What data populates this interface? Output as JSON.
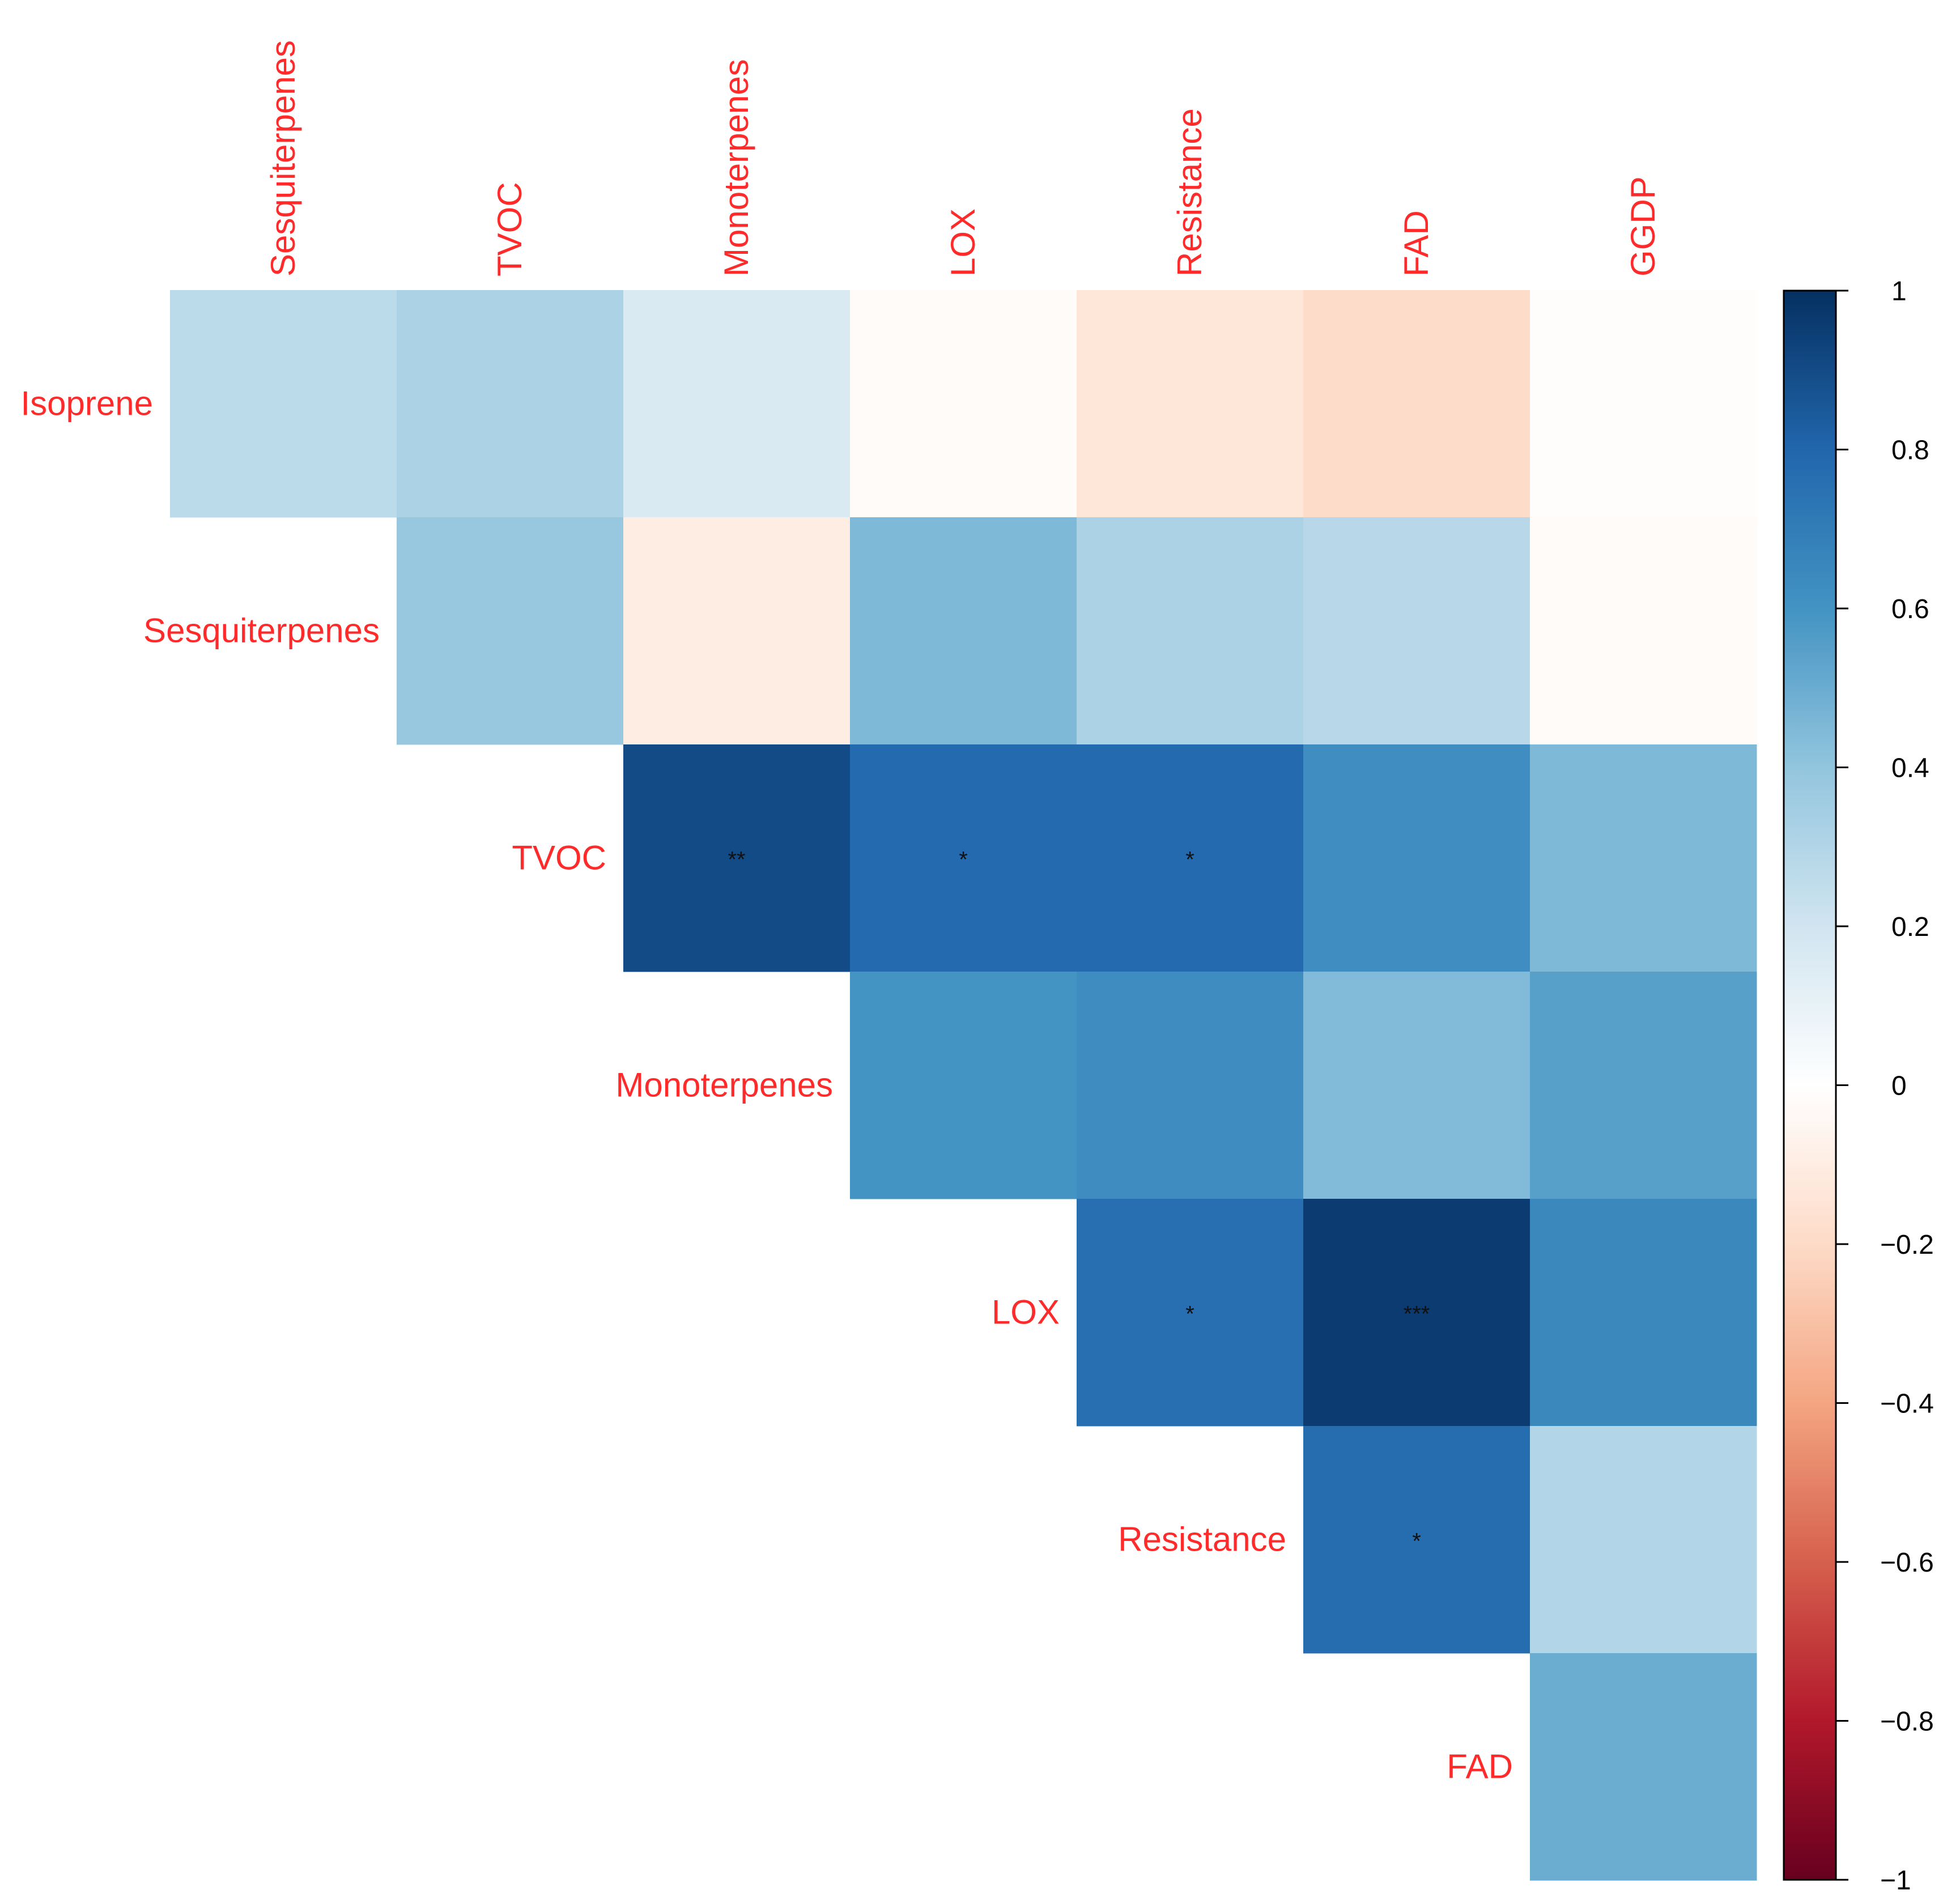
{
  "chart_data": {
    "type": "heatmap",
    "title": "",
    "row_labels": [
      "Isoprene",
      "Sesquiterpenes",
      "TVOC",
      "Monoterpenes",
      "LOX",
      "Resistance",
      "FAD"
    ],
    "col_labels": [
      "Sesquiterpenes",
      "TVOC",
      "Monoterpenes",
      "LOX",
      "Resistance",
      "FAD",
      "GGDP"
    ],
    "layout": "upper-triangle",
    "cells": [
      {
        "row": "Isoprene",
        "col": "Sesquiterpenes",
        "value": 0.27,
        "sig": ""
      },
      {
        "row": "Isoprene",
        "col": "TVOC",
        "value": 0.32,
        "sig": ""
      },
      {
        "row": "Isoprene",
        "col": "Monoterpenes",
        "value": 0.16,
        "sig": ""
      },
      {
        "row": "Isoprene",
        "col": "LOX",
        "value": -0.02,
        "sig": ""
      },
      {
        "row": "Isoprene",
        "col": "Resistance",
        "value": -0.14,
        "sig": ""
      },
      {
        "row": "Isoprene",
        "col": "FAD",
        "value": -0.19,
        "sig": ""
      },
      {
        "row": "Isoprene",
        "col": "GGDP",
        "value": -0.01,
        "sig": ""
      },
      {
        "row": "Sesquiterpenes",
        "col": "TVOC",
        "value": 0.38,
        "sig": ""
      },
      {
        "row": "Sesquiterpenes",
        "col": "Monoterpenes",
        "value": -0.1,
        "sig": ""
      },
      {
        "row": "Sesquiterpenes",
        "col": "LOX",
        "value": 0.45,
        "sig": ""
      },
      {
        "row": "Sesquiterpenes",
        "col": "Resistance",
        "value": 0.32,
        "sig": ""
      },
      {
        "row": "Sesquiterpenes",
        "col": "FAD",
        "value": 0.28,
        "sig": ""
      },
      {
        "row": "Sesquiterpenes",
        "col": "GGDP",
        "value": -0.02,
        "sig": ""
      },
      {
        "row": "TVOC",
        "col": "Monoterpenes",
        "value": 0.9,
        "sig": "**"
      },
      {
        "row": "TVOC",
        "col": "LOX",
        "value": 0.78,
        "sig": "*"
      },
      {
        "row": "TVOC",
        "col": "Resistance",
        "value": 0.78,
        "sig": "*"
      },
      {
        "row": "TVOC",
        "col": "FAD",
        "value": 0.62,
        "sig": ""
      },
      {
        "row": "TVOC",
        "col": "GGDP",
        "value": 0.45,
        "sig": ""
      },
      {
        "row": "Monoterpenes",
        "col": "LOX",
        "value": 0.6,
        "sig": ""
      },
      {
        "row": "Monoterpenes",
        "col": "Resistance",
        "value": 0.63,
        "sig": ""
      },
      {
        "row": "Monoterpenes",
        "col": "FAD",
        "value": 0.44,
        "sig": ""
      },
      {
        "row": "Monoterpenes",
        "col": "GGDP",
        "value": 0.55,
        "sig": ""
      },
      {
        "row": "LOX",
        "col": "Resistance",
        "value": 0.76,
        "sig": "*"
      },
      {
        "row": "LOX",
        "col": "FAD",
        "value": 0.96,
        "sig": "***"
      },
      {
        "row": "LOX",
        "col": "GGDP",
        "value": 0.65,
        "sig": ""
      },
      {
        "row": "Resistance",
        "col": "FAD",
        "value": 0.77,
        "sig": "*"
      },
      {
        "row": "Resistance",
        "col": "GGDP",
        "value": 0.3,
        "sig": ""
      },
      {
        "row": "FAD",
        "col": "GGDP",
        "value": 0.5,
        "sig": ""
      }
    ],
    "colorbar": {
      "range": [
        -1,
        1
      ],
      "ticks": [
        1,
        0.8,
        0.6,
        0.4,
        0.2,
        0,
        -0.2,
        -0.4,
        -0.6,
        -0.8,
        -1
      ],
      "tick_labels": [
        "1",
        "0.8",
        "0.6",
        "0.4",
        "0.2",
        "0",
        "−0.2",
        "−0.4",
        "−0.6",
        "−0.8",
        "−1"
      ],
      "palette": [
        "#67001F",
        "#B2182B",
        "#D6604D",
        "#F4A582",
        "#FDDBC7",
        "#FFFFFF",
        "#D1E5F0",
        "#92C5DE",
        "#4393C3",
        "#2166AC",
        "#053061"
      ]
    },
    "label_color": "#FF2A2A"
  }
}
